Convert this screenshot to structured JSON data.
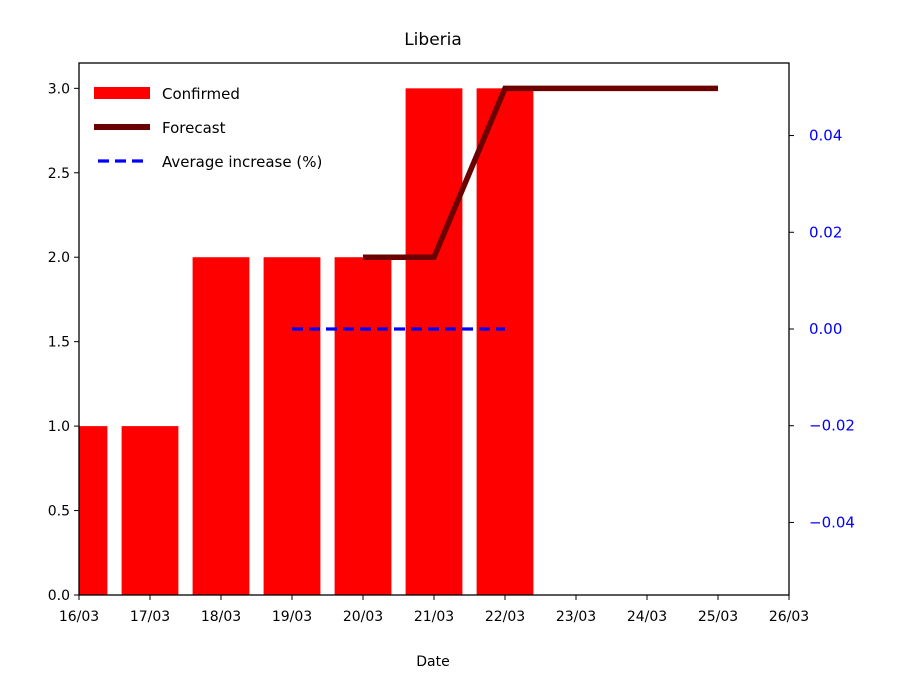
{
  "chart_data": {
    "type": "bar",
    "title": "Liberia",
    "xlabel": "Date",
    "x_ticks": [
      "16/03",
      "17/03",
      "18/03",
      "19/03",
      "20/03",
      "21/03",
      "22/03",
      "23/03",
      "24/03",
      "25/03",
      "26/03"
    ],
    "left_axis": {
      "ylim": [
        0.0,
        3.15
      ],
      "ticks": [
        "0.0",
        "0.5",
        "1.0",
        "1.5",
        "2.0",
        "2.5",
        "3.0"
      ],
      "color": "#000000"
    },
    "right_axis": {
      "ylim": [
        -0.055,
        0.055
      ],
      "ticks": [
        "−0.04",
        "−0.02",
        "0.00",
        "0.02",
        "0.04"
      ],
      "color": "#0000ff"
    },
    "series": [
      {
        "name": "Confirmed",
        "kind": "bar",
        "axis": "left",
        "color": "#ff0000",
        "x": [
          "16/03",
          "17/03",
          "18/03",
          "19/03",
          "20/03",
          "21/03",
          "22/03"
        ],
        "values": [
          1,
          1,
          2,
          2,
          2,
          3,
          3
        ]
      },
      {
        "name": "Forecast",
        "kind": "line",
        "axis": "left",
        "color": "#6b0000",
        "x": [
          "20/03",
          "21/03",
          "22/03",
          "23/03",
          "24/03",
          "25/03"
        ],
        "values": [
          2,
          2,
          3,
          3,
          3,
          3
        ]
      },
      {
        "name": "Average increase (%)",
        "kind": "dashed-line",
        "axis": "right",
        "color": "#0000ff",
        "x": [
          "19/03",
          "20/03",
          "21/03",
          "22/03"
        ],
        "values": [
          0,
          0,
          0,
          0
        ]
      }
    ],
    "legend": {
      "placement": "upper-left",
      "entries": [
        "Confirmed",
        "Forecast",
        "Average increase (%)"
      ]
    },
    "grid": false
  }
}
